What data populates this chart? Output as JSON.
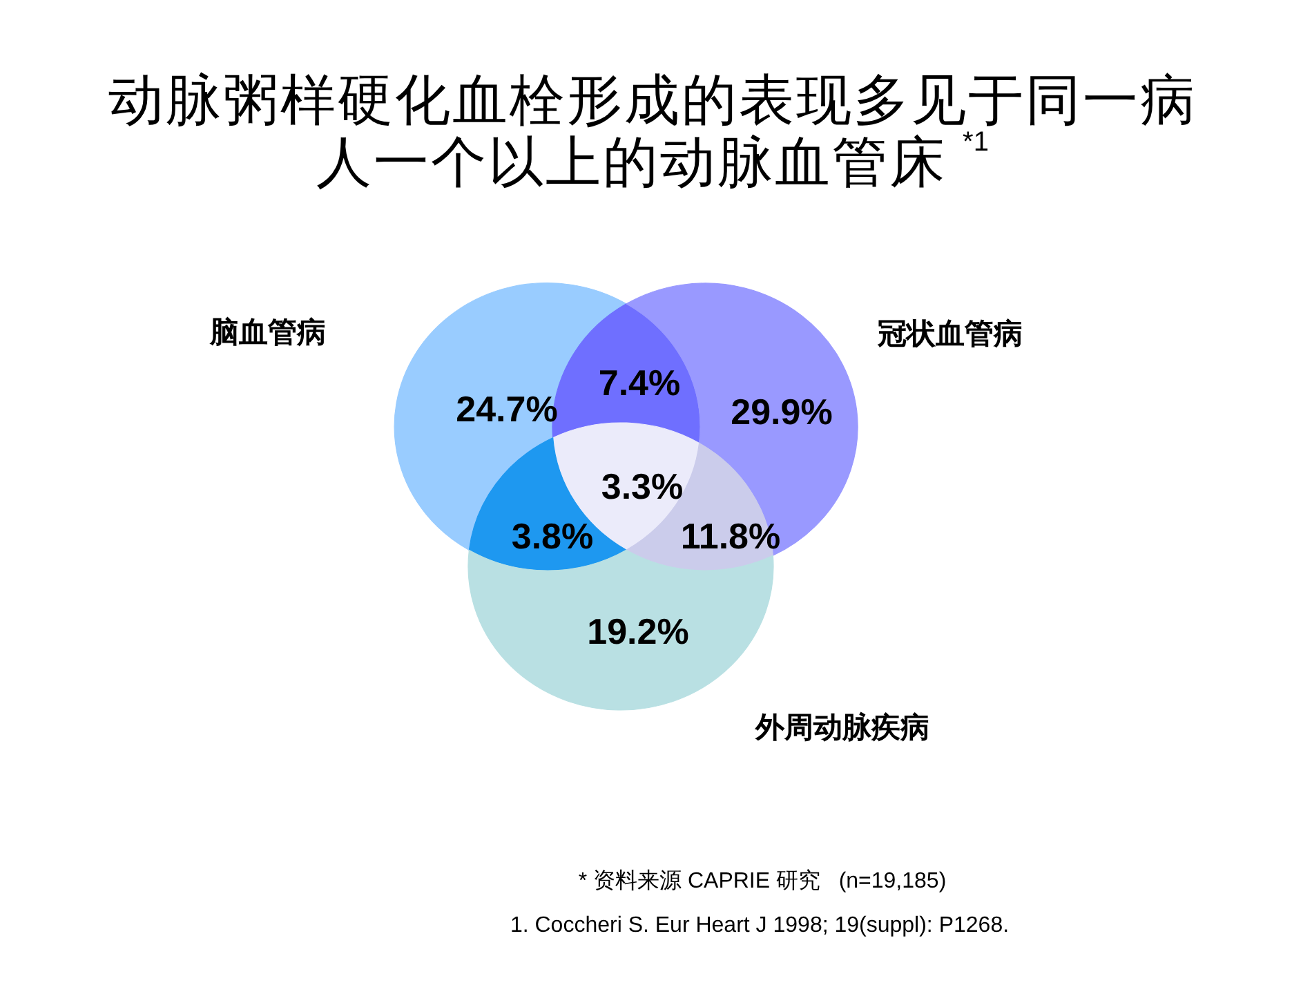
{
  "chart_data": {
    "type": "other",
    "title": "动脉粥样硬化血栓形成的表现多见于同一病人一个以上的动脉血管床 $^{*1}$",
    "categories": [
      null,
      null,
      null,
      null,
      null,
      null,
      null
    ],
    "values": [
      24.7,
      7.4,
      29.9,
      3.3,
      3.8,
      11.8,
      19.2
    ],
    "value_labels": [
      "24.7%",
      "7.4%",
      "29.9%",
      "3.3%",
      "3.8%",
      "11.8%",
      "19.2%"
    ],
    "colors": [
      "#99ccff",
      "#6f6fff",
      "#9999ff",
      "#ebebfa",
      "#1e98f0",
      "#cbcceb",
      "#b9e0e3"
    ],
    "annotations": [
      "脑血管病",
      "冠状血管病",
      "外周动脉疾病",
      "* 资料来源 CAPRIE 研究   (n=19,185)",
      "1. Coccheri S. Eur Heart J 1998; 19(suppl): P1268."
    ]
  }
}
